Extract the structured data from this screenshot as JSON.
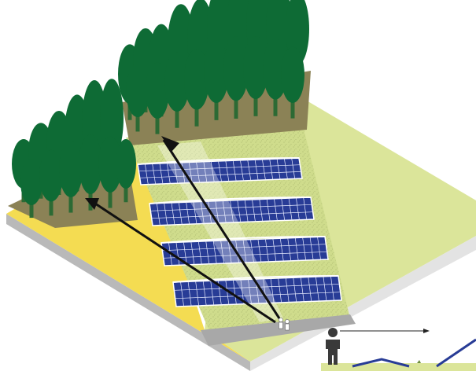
{
  "figure": {
    "description_elements": [
      "isometric-terrain",
      "solar-panel-rows",
      "forest-left",
      "forest-back",
      "sight-line-arrows",
      "observers",
      "inset-scale-view"
    ]
  },
  "colors": {
    "ground_top_left": "#f4dc52",
    "ground_top_right": "#dbe59a",
    "panel_field": "#cfdc8c",
    "panel_blue": "#283c96",
    "panel_grid": "#e8ecff",
    "tree_green": "#0e6b35",
    "tree_trunk": "#2c6a34",
    "soil": "#8b8256",
    "edge_light": "#e9e9e9",
    "edge_dark": "#b9b9b9",
    "path_gray": "#a8a8a8",
    "arrow": "#111111",
    "person_dark": "#3a3a3a"
  },
  "panel_rows": 4,
  "panels_per_row": 22,
  "observers_count": 2,
  "sight_lines": 2
}
